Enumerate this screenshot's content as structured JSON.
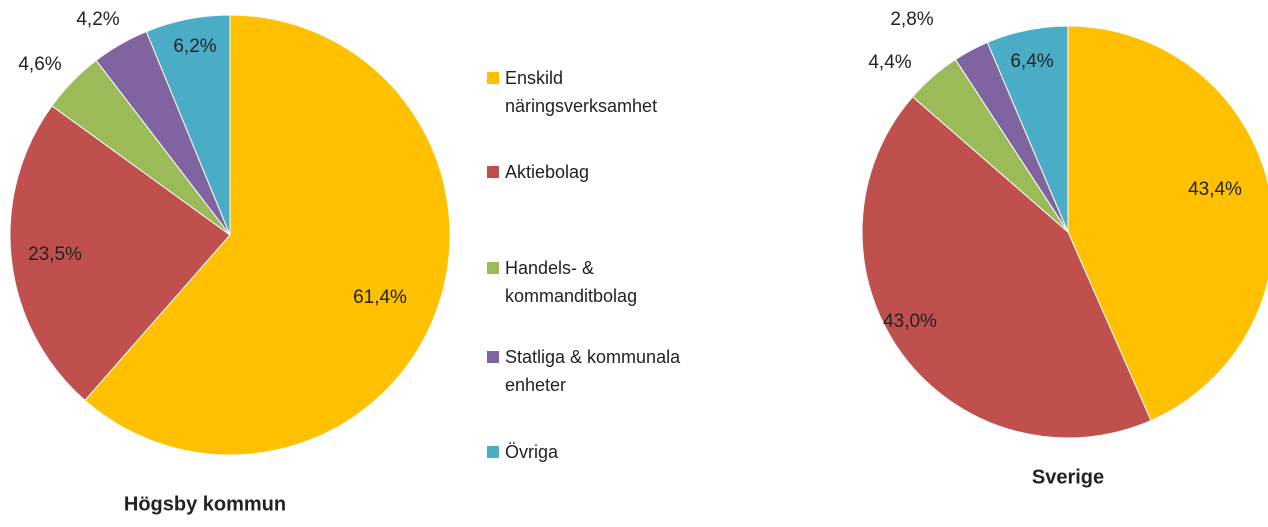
{
  "legend": {
    "categories": [
      "Enskild näringsverksamhet",
      "Aktiebolag",
      "Handels- & kommanditbolag",
      "Statliga & kommunala enheter",
      "Övriga"
    ],
    "colors": [
      "#FFC000",
      "#C0504D",
      "#9BBB59",
      "#8064A2",
      "#4BACC6"
    ]
  },
  "chart_data": [
    {
      "type": "pie",
      "title": "Högsby kommun",
      "values": [
        61.4,
        23.5,
        4.6,
        4.2,
        6.2
      ],
      "value_labels": [
        "61,4%",
        "23,5%",
        "4,6%",
        "4,2%",
        "6,2%"
      ]
    },
    {
      "type": "pie",
      "title": "Sverige",
      "values": [
        43.4,
        43.0,
        4.4,
        2.8,
        6.4
      ],
      "value_labels": [
        "43,4%",
        "43,0%",
        "4,4%",
        "2,8%",
        "6,4%"
      ]
    }
  ]
}
